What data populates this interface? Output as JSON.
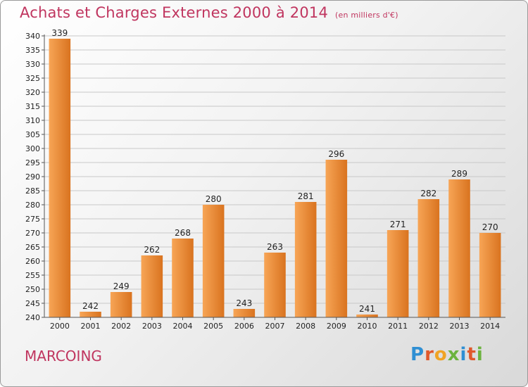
{
  "header": {
    "title": "Achats et Charges Externes 2000 à 2014",
    "unit": "(en milliers d'€)"
  },
  "footer": {
    "town": "MARCOING",
    "logo": "Proxiti"
  },
  "colors": {
    "bar_light": "#f7a556",
    "bar_dark": "#d9731f",
    "title": "#c0355f"
  },
  "chart_data": {
    "type": "bar",
    "title": "Achats et Charges Externes 2000 à 2014",
    "subtitle": "(en milliers d'€)",
    "categories": [
      "2000",
      "2001",
      "2002",
      "2003",
      "2004",
      "2005",
      "2006",
      "2007",
      "2008",
      "2009",
      "2010",
      "2011",
      "2012",
      "2013",
      "2014"
    ],
    "values": [
      339,
      242,
      249,
      262,
      268,
      280,
      243,
      263,
      281,
      296,
      241,
      271,
      282,
      289,
      270
    ],
    "ylim": [
      240,
      340
    ],
    "yticks": [
      240,
      245,
      250,
      255,
      260,
      265,
      270,
      275,
      280,
      285,
      290,
      295,
      300,
      305,
      310,
      315,
      320,
      325,
      330,
      335,
      340
    ],
    "grid": true,
    "data_labels": true
  }
}
